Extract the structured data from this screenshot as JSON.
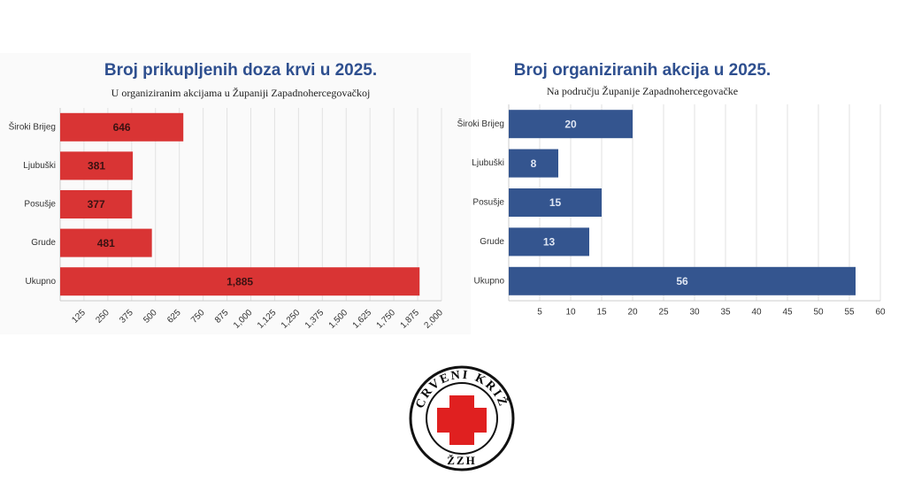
{
  "chart_data": [
    {
      "type": "bar",
      "orientation": "horizontal",
      "title": "Broj prikupljenih doza krvi u 2025.",
      "subtitle": "U organiziranim akcijama u Županiji Zapadnohercegovačkoj",
      "categories": [
        "Široki Brijeg",
        "Ljubuški",
        "Posušje",
        "Grude",
        "Ukupno"
      ],
      "values": [
        646,
        381,
        377,
        481,
        1885
      ],
      "value_labels": [
        "646",
        "381",
        "377",
        "481",
        "1,885"
      ],
      "color": "#d93434",
      "xlim": [
        0,
        2000
      ],
      "xticks": [
        125,
        250,
        375,
        500,
        625,
        750,
        875,
        {
          "value": 1000,
          "label": "1,000"
        },
        {
          "value": 1125,
          "label": "1,125"
        },
        {
          "value": 1250,
          "label": "1,250"
        },
        {
          "value": 1375,
          "label": "1,375"
        },
        {
          "value": 1500,
          "label": "1,500"
        },
        {
          "value": 1625,
          "label": "1,625"
        },
        {
          "value": 1750,
          "label": "1,750"
        },
        {
          "value": 1875,
          "label": "1,875"
        },
        {
          "value": 2000,
          "label": "2,000"
        }
      ],
      "grid": true
    },
    {
      "type": "bar",
      "orientation": "horizontal",
      "title": "Broj organiziranih akcija u 2025.",
      "subtitle": "Na području Županije Zapadnohercegovačke",
      "categories": [
        "Široki Brijeg",
        "Ljubuški",
        "Posušje",
        "Grude",
        "Ukupno"
      ],
      "values": [
        20,
        8,
        15,
        13,
        56
      ],
      "color": "#34558f",
      "xlim": [
        0,
        60
      ],
      "xticks": [
        5,
        10,
        15,
        20,
        25,
        30,
        35,
        40,
        45,
        50,
        55,
        60
      ],
      "grid": true
    }
  ],
  "logo": {
    "top_text": "CRVENI KRIŽ",
    "bottom_text": "ŽZH"
  }
}
